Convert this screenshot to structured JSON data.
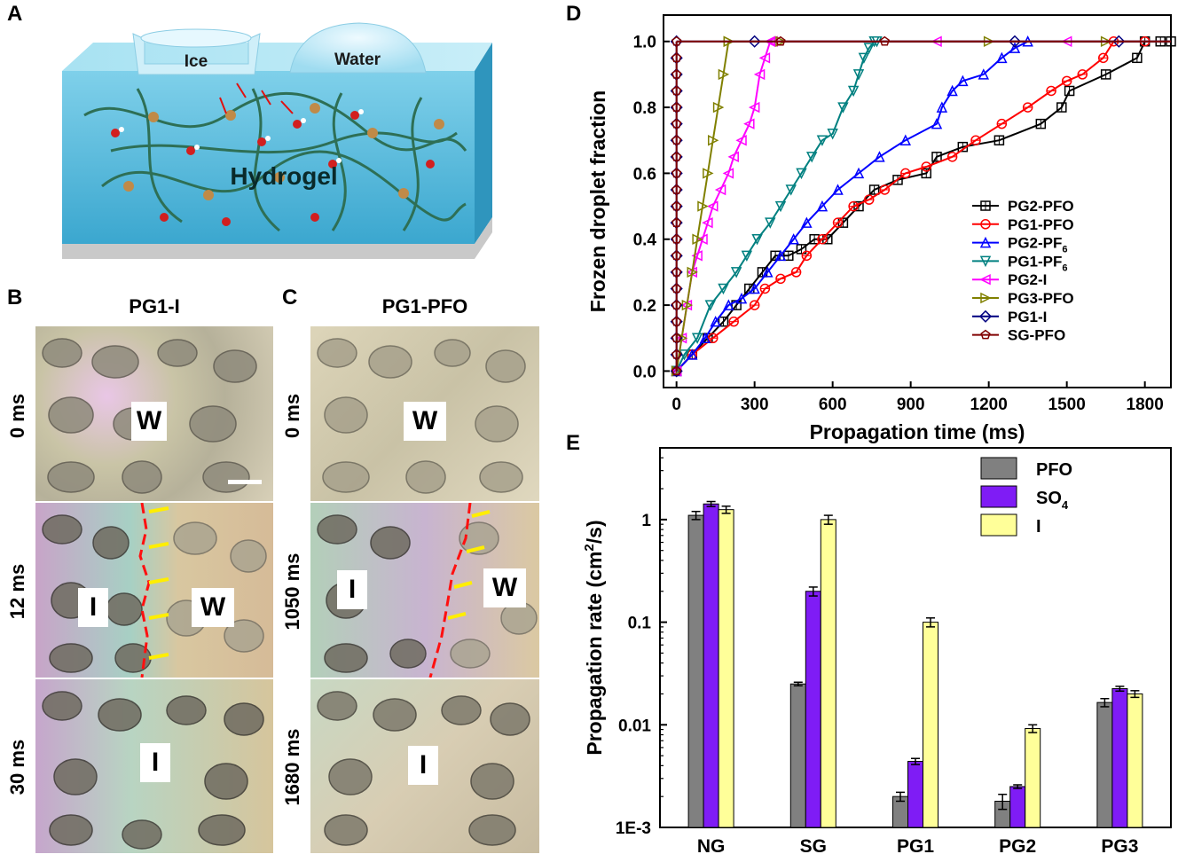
{
  "panels": {
    "a": {
      "letter": "A",
      "ice": "Ice",
      "water": "Water",
      "hydrogel": "Hydrogel"
    },
    "b": {
      "letter": "B",
      "title": "PG1-I",
      "times": [
        "0 ms",
        "12 ms",
        "30 ms"
      ],
      "tags": {
        "r1": "W",
        "r2_left": "I",
        "r2_right": "W",
        "r3": "I"
      }
    },
    "c": {
      "letter": "C",
      "title": "PG1-PFO",
      "times": [
        "0 ms",
        "1050 ms",
        "1680 ms"
      ],
      "tags": {
        "r1": "W",
        "r2_left": "I",
        "r2_right": "W",
        "r3": "I"
      }
    },
    "d": {
      "letter": "D"
    },
    "e": {
      "letter": "E"
    }
  },
  "chart_data": [
    {
      "type": "line",
      "panel": "D",
      "xlabel": "Propagation time (ms)",
      "ylabel": "Frozen droplet fraction",
      "xlim": [
        -50,
        1900
      ],
      "ylim": [
        -0.05,
        1.08
      ],
      "xticks": [
        "0",
        "300",
        "600",
        "900",
        "1200",
        "1500",
        "1800"
      ],
      "yticks": [
        "0.0",
        "0.2",
        "0.4",
        "0.6",
        "0.8",
        "1.0"
      ],
      "legend": "center-right",
      "series": [
        {
          "name": "PG2-PFO",
          "label_main": "PG2-PFO",
          "color": "#000000",
          "marker": "square",
          "x": [
            0,
            60,
            120,
            180,
            230,
            280,
            330,
            380,
            430,
            480,
            530,
            580,
            640,
            700,
            760,
            850,
            960,
            1000,
            1100,
            1240,
            1400,
            1480,
            1510,
            1650,
            1770,
            1800,
            1860,
            1900
          ],
          "y": [
            0,
            0.05,
            0.1,
            0.15,
            0.2,
            0.25,
            0.3,
            0.35,
            0.35,
            0.37,
            0.4,
            0.4,
            0.45,
            0.5,
            0.55,
            0.58,
            0.6,
            0.65,
            0.68,
            0.7,
            0.75,
            0.8,
            0.85,
            0.9,
            0.95,
            1.0,
            1.0,
            1.0
          ]
        },
        {
          "name": "PG1-PFO",
          "label_main": "PG1-PFO",
          "color": "#ff0000",
          "marker": "circle",
          "x": [
            0,
            60,
            140,
            220,
            300,
            340,
            400,
            460,
            500,
            560,
            620,
            680,
            740,
            800,
            880,
            960,
            1060,
            1150,
            1250,
            1350,
            1440,
            1500,
            1560,
            1640,
            1680,
            1800
          ],
          "y": [
            0,
            0.05,
            0.1,
            0.15,
            0.2,
            0.25,
            0.28,
            0.3,
            0.35,
            0.4,
            0.45,
            0.5,
            0.52,
            0.55,
            0.6,
            0.62,
            0.65,
            0.7,
            0.75,
            0.8,
            0.85,
            0.88,
            0.9,
            0.95,
            1.0,
            1.0
          ]
        },
        {
          "name": "PG2-PF6",
          "label_main": "PG2-PF",
          "label_sub": "6",
          "color": "#0000ff",
          "marker": "triangle-up",
          "x": [
            0,
            60,
            110,
            150,
            200,
            250,
            300,
            350,
            400,
            450,
            500,
            560,
            620,
            700,
            780,
            880,
            1000,
            1020,
            1060,
            1100,
            1180,
            1250,
            1300,
            1350
          ],
          "y": [
            0,
            0.05,
            0.1,
            0.15,
            0.2,
            0.22,
            0.25,
            0.3,
            0.35,
            0.4,
            0.45,
            0.5,
            0.55,
            0.6,
            0.65,
            0.7,
            0.75,
            0.8,
            0.85,
            0.88,
            0.9,
            0.95,
            0.98,
            1.0
          ]
        },
        {
          "name": "PG1-PF6",
          "label_main": "PG1-PF",
          "label_sub": "6",
          "color": "#008080",
          "marker": "triangle-down",
          "x": [
            0,
            30,
            80,
            130,
            180,
            230,
            270,
            310,
            360,
            400,
            440,
            480,
            520,
            560,
            600,
            640,
            680,
            700,
            720,
            740,
            760
          ],
          "y": [
            0,
            0.05,
            0.1,
            0.2,
            0.25,
            0.3,
            0.35,
            0.4,
            0.45,
            0.5,
            0.55,
            0.6,
            0.65,
            0.7,
            0.72,
            0.8,
            0.85,
            0.9,
            0.95,
            0.98,
            1.0
          ]
        },
        {
          "name": "PG2-I",
          "label_main": "PG2-I",
          "color": "#ff00ff",
          "marker": "triangle-left",
          "x": [
            0,
            20,
            40,
            60,
            80,
            100,
            120,
            140,
            170,
            200,
            220,
            250,
            280,
            300,
            320,
            340,
            360
          ],
          "y": [
            0,
            0.1,
            0.2,
            0.3,
            0.35,
            0.4,
            0.45,
            0.5,
            0.55,
            0.6,
            0.65,
            0.7,
            0.75,
            0.8,
            0.9,
            0.95,
            1.0
          ]
        },
        {
          "name": "PG3-PFO",
          "label_main": "PG3-PFO",
          "color": "#808000",
          "marker": "triangle-right",
          "x": [
            0,
            20,
            40,
            60,
            80,
            100,
            120,
            140,
            160,
            180,
            200
          ],
          "y": [
            0,
            0.1,
            0.2,
            0.3,
            0.4,
            0.5,
            0.6,
            0.7,
            0.8,
            0.9,
            1.0
          ]
        },
        {
          "name": "PG1-I",
          "label_main": "PG1-I",
          "color": "#000080",
          "marker": "diamond",
          "x": [
            0,
            0,
            0,
            0,
            0,
            0,
            0,
            0,
            0,
            0,
            0,
            0,
            0,
            0,
            0,
            0,
            0,
            0,
            0,
            0,
            0
          ],
          "y": [
            0,
            0.05,
            0.1,
            0.15,
            0.2,
            0.25,
            0.3,
            0.35,
            0.4,
            0.45,
            0.5,
            0.55,
            0.6,
            0.65,
            0.7,
            0.75,
            0.8,
            0.85,
            0.9,
            0.95,
            1.0
          ]
        },
        {
          "name": "SG-PFO",
          "label_main": "SG-PFO",
          "color": "#800000",
          "marker": "pentagon",
          "x": [
            0,
            0,
            0,
            0,
            0,
            0,
            0,
            0,
            0,
            0,
            0,
            0,
            0,
            0,
            0,
            0,
            0,
            0,
            0,
            0,
            0
          ],
          "y": [
            0,
            0.05,
            0.1,
            0.15,
            0.2,
            0.25,
            0.3,
            0.35,
            0.4,
            0.45,
            0.5,
            0.55,
            0.6,
            0.65,
            0.7,
            0.75,
            0.8,
            0.85,
            0.9,
            0.95,
            1.0
          ]
        }
      ],
      "plateau": [
        {
          "name": "PG3-PFO",
          "x": [
            200,
            1900
          ],
          "markers_x": [
            200,
            400,
            1200,
            1650
          ]
        },
        {
          "name": "PG2-I",
          "x": [
            360,
            1900
          ],
          "markers_x": [
            370,
            1000,
            1500
          ]
        },
        {
          "name": "PG1-PF6",
          "x": [
            760,
            1900
          ],
          "markers_x": [
            770
          ]
        },
        {
          "name": "PG1-I",
          "x": [
            0,
            1900
          ],
          "markers_x": [
            300,
            1300,
            1700
          ]
        },
        {
          "name": "SG-PFO",
          "x": [
            0,
            1900
          ],
          "markers_x": [
            400,
            800
          ]
        }
      ]
    },
    {
      "type": "bar",
      "panel": "E",
      "ylabel_main": "Propagation rate (cm",
      "ylabel_sup": "2",
      "ylabel_end": "/s)",
      "scale": "log",
      "ylim": [
        0.001,
        5
      ],
      "yticks": [
        "1E-3",
        "0.01",
        "0.1",
        "1"
      ],
      "categories": [
        "NG",
        "SG",
        "PG1",
        "PG2",
        "PG3"
      ],
      "legend": "top-right",
      "series": [
        {
          "name": "PFO",
          "label_main": "PFO",
          "color": "#808080",
          "values": [
            1.1,
            0.025,
            0.002,
            0.0018,
            0.0165
          ],
          "errors": [
            0.1,
            0.001,
            0.0002,
            0.0003,
            0.0015
          ]
        },
        {
          "name": "SO4",
          "label_main": "SO",
          "label_sub": "4",
          "color": "#7f1cf5",
          "values": [
            1.42,
            0.2,
            0.0044,
            0.0025,
            0.0225
          ],
          "errors": [
            0.08,
            0.02,
            0.0003,
            0.0001,
            0.0012
          ]
        },
        {
          "name": "I",
          "label_main": "I",
          "color": "#ffff99",
          "values": [
            1.25,
            1.0,
            0.1,
            0.0092,
            0.02
          ],
          "errors": [
            0.1,
            0.1,
            0.01,
            0.0008,
            0.0015
          ]
        }
      ]
    }
  ]
}
